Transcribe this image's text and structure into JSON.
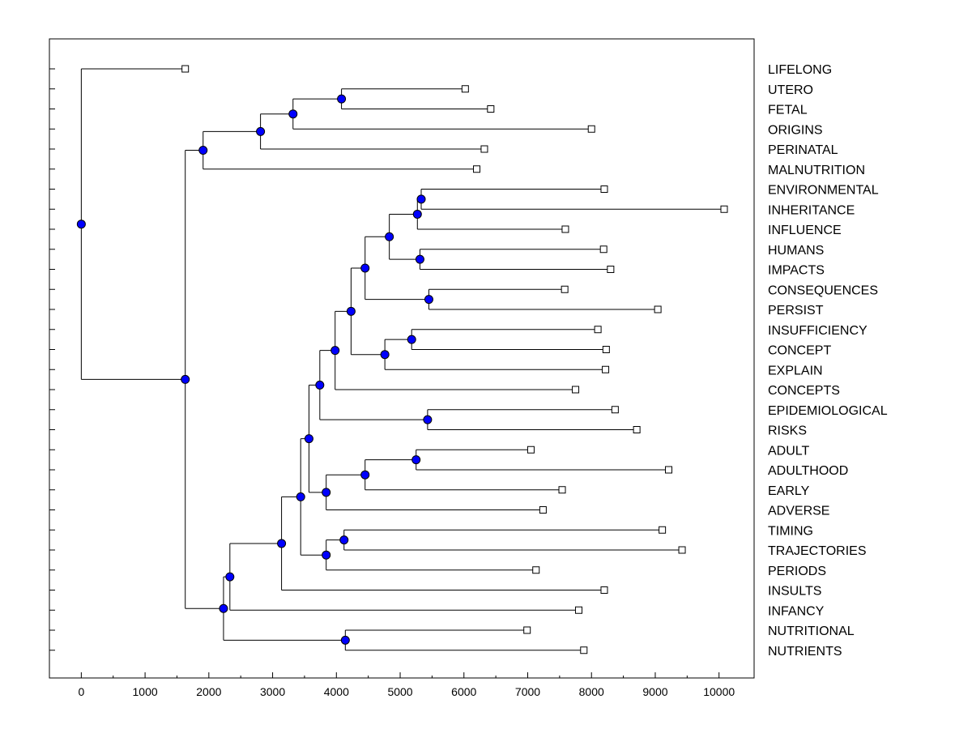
{
  "chart_data": {
    "type": "dendrogram",
    "xlim": [
      -500,
      10550
    ],
    "x_ticks": [
      "0",
      "1000",
      "2000",
      "3000",
      "4000",
      "5000",
      "6000",
      "7000",
      "8000",
      "9000",
      "10000"
    ],
    "grid": false,
    "leaves": [
      {
        "label": "LIFELONG",
        "value": 1630
      },
      {
        "label": "UTERO",
        "value": 6020
      },
      {
        "label": "FETAL",
        "value": 6420
      },
      {
        "label": "ORIGINS",
        "value": 8000
      },
      {
        "label": "PERINATAL",
        "value": 6320
      },
      {
        "label": "MALNUTRITION",
        "value": 6200
      },
      {
        "label": "ENVIRONMENTAL",
        "value": 8200
      },
      {
        "label": "INHERITANCE",
        "value": 10080
      },
      {
        "label": "INFLUENCE",
        "value": 7590
      },
      {
        "label": "HUMANS",
        "value": 8190
      },
      {
        "label": "IMPACTS",
        "value": 8300
      },
      {
        "label": "CONSEQUENCES",
        "value": 7580
      },
      {
        "label": "PERSIST",
        "value": 9040
      },
      {
        "label": "INSUFFICIENCY",
        "value": 8100
      },
      {
        "label": "CONCEPT",
        "value": 8230
      },
      {
        "label": "EXPLAIN",
        "value": 8220
      },
      {
        "label": "CONCEPTS",
        "value": 7750
      },
      {
        "label": "EPIDEMIOLOGICAL",
        "value": 8370
      },
      {
        "label": "RISKS",
        "value": 8710
      },
      {
        "label": "ADULT",
        "value": 7050
      },
      {
        "label": "ADULTHOOD",
        "value": 9210
      },
      {
        "label": "EARLY",
        "value": 7540
      },
      {
        "label": "ADVERSE",
        "value": 7240
      },
      {
        "label": "TIMING",
        "value": 9110
      },
      {
        "label": "TRAJECTORIES",
        "value": 9420
      },
      {
        "label": "PERIODS",
        "value": 7130
      },
      {
        "label": "INSULTS",
        "value": 8200
      },
      {
        "label": "INFANCY",
        "value": 7800
      },
      {
        "label": "NUTRITIONAL",
        "value": 6990
      },
      {
        "label": "NUTRIENTS",
        "value": 7880
      }
    ],
    "nodes": [
      {
        "id": "n_ut_fe",
        "value": 4080,
        "children": [
          "L1",
          "L2"
        ]
      },
      {
        "id": "n_ori",
        "value": 3320,
        "children": [
          "n_ut_fe",
          "L3"
        ]
      },
      {
        "id": "n_peri",
        "value": 2810,
        "children": [
          "n_ori",
          "L4"
        ]
      },
      {
        "id": "n_mal",
        "value": 1910,
        "children": [
          "n_peri",
          "L5"
        ]
      },
      {
        "id": "n_env_inh",
        "value": 5330,
        "children": [
          "L6",
          "L7"
        ]
      },
      {
        "id": "n_infl",
        "value": 5270,
        "children": [
          "n_env_inh",
          "L8"
        ]
      },
      {
        "id": "n_hum_imp",
        "value": 5310,
        "children": [
          "L9",
          "L10"
        ]
      },
      {
        "id": "n_a",
        "value": 4830,
        "children": [
          "n_infl",
          "n_hum_imp"
        ]
      },
      {
        "id": "n_con_per",
        "value": 5450,
        "children": [
          "L11",
          "L12"
        ]
      },
      {
        "id": "n_b",
        "value": 4450,
        "children": [
          "n_a",
          "n_con_per"
        ]
      },
      {
        "id": "n_ins_con",
        "value": 5180,
        "children": [
          "L13",
          "L14"
        ]
      },
      {
        "id": "n_expl",
        "value": 4760,
        "children": [
          "n_ins_con",
          "L15"
        ]
      },
      {
        "id": "n_c",
        "value": 4230,
        "children": [
          "n_b",
          "n_expl"
        ]
      },
      {
        "id": "n_cons",
        "value": 3980,
        "children": [
          "n_c",
          "L16"
        ]
      },
      {
        "id": "n_epi_risk",
        "value": 5430,
        "children": [
          "L17",
          "L18"
        ]
      },
      {
        "id": "n_d",
        "value": 3740,
        "children": [
          "n_cons",
          "n_epi_risk"
        ]
      },
      {
        "id": "n_adu",
        "value": 5250,
        "children": [
          "L19",
          "L20"
        ]
      },
      {
        "id": "n_early",
        "value": 4450,
        "children": [
          "n_adu",
          "L21"
        ]
      },
      {
        "id": "n_adv",
        "value": 3840,
        "children": [
          "n_early",
          "L22"
        ]
      },
      {
        "id": "n_e",
        "value": 3570,
        "children": [
          "n_d",
          "n_adv"
        ]
      },
      {
        "id": "n_tim_traj",
        "value": 4120,
        "children": [
          "L23",
          "L24"
        ]
      },
      {
        "id": "n_perd",
        "value": 3840,
        "children": [
          "n_tim_traj",
          "L25"
        ]
      },
      {
        "id": "n_f",
        "value": 3440,
        "children": [
          "n_e",
          "n_perd"
        ]
      },
      {
        "id": "n_insu",
        "value": 3140,
        "children": [
          "n_f",
          "L26"
        ]
      },
      {
        "id": "n_infa",
        "value": 2330,
        "children": [
          "n_insu",
          "L27"
        ]
      },
      {
        "id": "n_nut",
        "value": 4140,
        "children": [
          "L28",
          "L29"
        ]
      },
      {
        "id": "n_g",
        "value": 2230,
        "children": [
          "n_infa",
          "n_nut"
        ]
      },
      {
        "id": "n_h",
        "value": 1630,
        "children": [
          "n_mal",
          "n_g"
        ]
      },
      {
        "id": "n_root",
        "value": 0,
        "children": [
          "L0",
          "n_h"
        ]
      }
    ],
    "colors": {
      "node": "#0000ff",
      "leaf": "#ffffff",
      "line": "#000000"
    }
  }
}
